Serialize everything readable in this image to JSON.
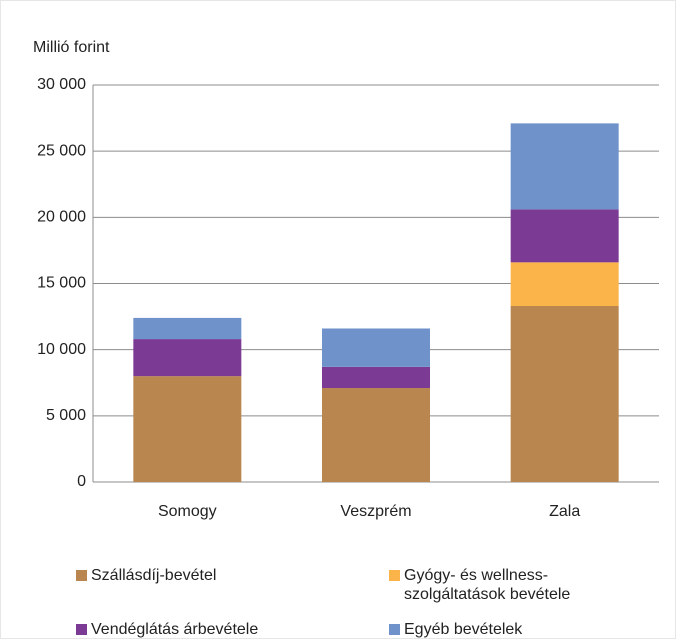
{
  "chart_data": {
    "type": "stacked_bar",
    "y_label": "Millió forint",
    "categories": [
      "Somogy",
      "Veszprém",
      "Zala"
    ],
    "series": [
      {
        "name": "Szállásdíj-bevétel",
        "color": "#b8864e",
        "values": [
          8000,
          7100,
          13300
        ]
      },
      {
        "name": "Gyógy- és wellness-szolgáltatások bevétele",
        "color": "#fbb44a",
        "values": [
          0,
          0,
          3300
        ]
      },
      {
        "name": "Vendéglátás árbevétele",
        "color": "#7b3b94",
        "values": [
          2800,
          1600,
          4000
        ]
      },
      {
        "name": "Egyéb bevételek",
        "color": "#6f92cb",
        "values": [
          1600,
          2900,
          6500
        ]
      }
    ],
    "ylim": [
      0,
      30000
    ],
    "yticks": [
      0,
      {
        "value": 5000,
        "label": "5 000"
      },
      {
        "value": 10000,
        "label": "10 000"
      },
      {
        "value": 15000,
        "label": "15 000"
      },
      {
        "value": 20000,
        "label": "20 000"
      },
      {
        "value": 25000,
        "label": "25 000"
      },
      {
        "value": 30000,
        "label": "30 000"
      }
    ],
    "grid": true
  }
}
